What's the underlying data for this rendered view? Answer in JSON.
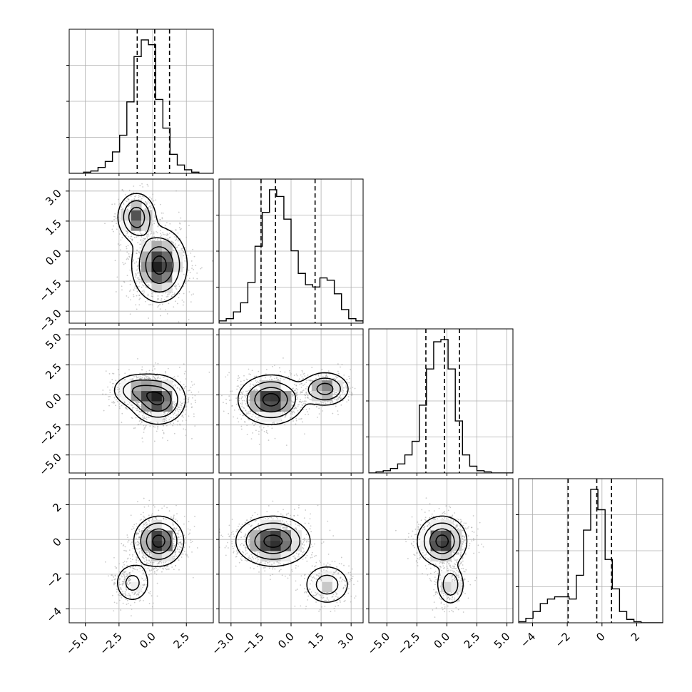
{
  "chart_data": {
    "type": "corner",
    "title": "",
    "n_params": 4,
    "colors": {
      "line": "#000000",
      "grid": "#b0b0b0",
      "scatter": "#9e9e9e",
      "background": "#ffffff"
    },
    "grid": true,
    "params": [
      {
        "index": 0,
        "range": [
          -6.2,
          4.5
        ],
        "ticks": [
          -5.0,
          -2.5,
          0.0,
          2.5
        ],
        "tick_labels": [
          "−5.0",
          "−2.5",
          "0.0",
          "2.5"
        ],
        "quantiles": [
          -1.15,
          0.15,
          1.25
        ]
      },
      {
        "index": 1,
        "range": [
          -3.6,
          3.6
        ],
        "ticks": [
          -3.0,
          -1.5,
          0.0,
          1.5,
          3.0
        ],
        "tick_labels": [
          "−3.0",
          "−1.5",
          "0.0",
          "1.5",
          "3.0"
        ],
        "quantiles": [
          -1.5,
          -0.78,
          1.2
        ]
      },
      {
        "index": 2,
        "range": [
          -6.5,
          5.5
        ],
        "ticks": [
          -5.0,
          -2.5,
          0.0,
          2.5,
          5.0
        ],
        "tick_labels": [
          "−5.0",
          "−2.5",
          "0.0",
          "2.5",
          "5.0"
        ],
        "quantiles": [
          -1.75,
          -0.2,
          1.05
        ]
      },
      {
        "index": 3,
        "range": [
          -4.8,
          3.5
        ],
        "ticks": [
          -4,
          -2,
          0,
          2
        ],
        "tick_labels": [
          "−4",
          "−2",
          "0",
          "2"
        ],
        "quantiles": [
          -1.95,
          -0.3,
          0.55
        ]
      }
    ],
    "histograms": [
      {
        "param": 0,
        "bin_start": -6.2,
        "bin_width": 0.535,
        "counts": [
          0,
          0,
          1,
          2,
          5,
          10,
          18,
          32,
          60,
          98,
          112,
          108,
          62,
          38,
          16,
          7,
          3,
          1,
          0,
          0
        ]
      },
      {
        "param": 1,
        "bin_start": -3.6,
        "bin_width": 0.36,
        "counts": [
          2,
          4,
          10,
          18,
          36,
          68,
          98,
          118,
          112,
          92,
          64,
          44,
          34,
          32,
          40,
          38,
          26,
          12,
          4,
          2
        ]
      },
      {
        "param": 2,
        "bin_start": -6.5,
        "bin_width": 0.6,
        "counts": [
          0,
          1,
          2,
          4,
          8,
          16,
          28,
          60,
          92,
          116,
          118,
          92,
          46,
          16,
          6,
          2,
          1,
          0,
          0,
          0
        ]
      },
      {
        "param": 3,
        "bin_start": -4.8,
        "bin_width": 0.415,
        "counts": [
          1,
          4,
          10,
          17,
          21,
          23,
          23,
          21,
          42,
          82,
          118,
          100,
          56,
          30,
          10,
          3,
          1,
          0,
          0,
          0
        ]
      }
    ],
    "pairs": [
      {
        "x_param": 0,
        "y_param": 1,
        "components": [
          {
            "mx": 0.5,
            "my": -0.7,
            "sx": 1.0,
            "sy": 0.9,
            "w": 0.72
          },
          {
            "mx": -1.2,
            "my": 1.7,
            "sx": 0.7,
            "sy": 0.6,
            "w": 0.28
          }
        ]
      },
      {
        "x_param": 0,
        "y_param": 2,
        "components": [
          {
            "mx": 0.4,
            "my": -0.4,
            "sx": 1.0,
            "sy": 1.0,
            "w": 0.75
          },
          {
            "mx": -1.3,
            "my": 0.4,
            "sx": 0.9,
            "sy": 0.7,
            "w": 0.25
          }
        ]
      },
      {
        "x_param": 1,
        "y_param": 2,
        "components": [
          {
            "mx": -1.0,
            "my": -0.4,
            "sx": 0.8,
            "sy": 1.0,
            "w": 0.72
          },
          {
            "mx": 1.7,
            "my": 0.5,
            "sx": 0.6,
            "sy": 0.7,
            "w": 0.28
          }
        ]
      },
      {
        "x_param": 0,
        "y_param": 3,
        "components": [
          {
            "mx": 0.45,
            "my": -0.1,
            "sx": 0.9,
            "sy": 0.7,
            "w": 0.78
          },
          {
            "mx": -1.5,
            "my": -2.5,
            "sx": 0.7,
            "sy": 0.6,
            "w": 0.22
          }
        ]
      },
      {
        "x_param": 1,
        "y_param": 3,
        "components": [
          {
            "mx": -0.9,
            "my": -0.1,
            "sx": 0.9,
            "sy": 0.7,
            "w": 0.78
          },
          {
            "mx": 1.8,
            "my": -2.6,
            "sx": 0.6,
            "sy": 0.6,
            "w": 0.22
          }
        ]
      },
      {
        "x_param": 2,
        "y_param": 3,
        "components": [
          {
            "mx": -0.4,
            "my": -0.1,
            "sx": 1.0,
            "sy": 0.7,
            "w": 0.78
          },
          {
            "mx": 0.3,
            "my": -2.6,
            "sx": 0.6,
            "sy": 0.6,
            "w": 0.22
          }
        ]
      }
    ]
  }
}
